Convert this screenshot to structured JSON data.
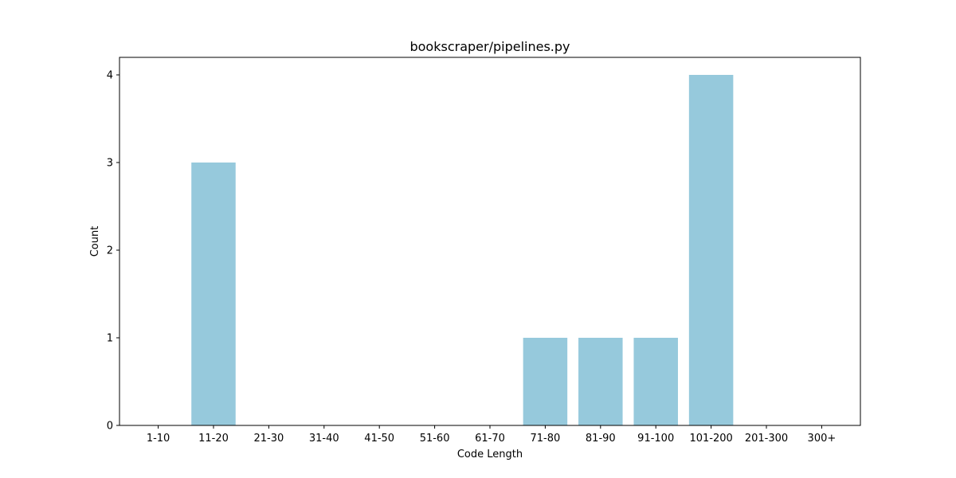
{
  "chart_data": {
    "type": "bar",
    "title": "bookscraper/pipelines.py",
    "xlabel": "Code Length",
    "ylabel": "Count",
    "categories": [
      "1-10",
      "11-20",
      "21-30",
      "31-40",
      "41-50",
      "51-60",
      "61-70",
      "71-80",
      "81-90",
      "91-100",
      "101-200",
      "201-300",
      "300+"
    ],
    "values": [
      0,
      3,
      0,
      0,
      0,
      0,
      0,
      1,
      1,
      1,
      4,
      0,
      0
    ],
    "ylim": [
      0,
      4.2
    ],
    "yticks": [
      0,
      1,
      2,
      3,
      4
    ],
    "bar_color": "#96c9dc",
    "grid": false,
    "legend": "none"
  }
}
